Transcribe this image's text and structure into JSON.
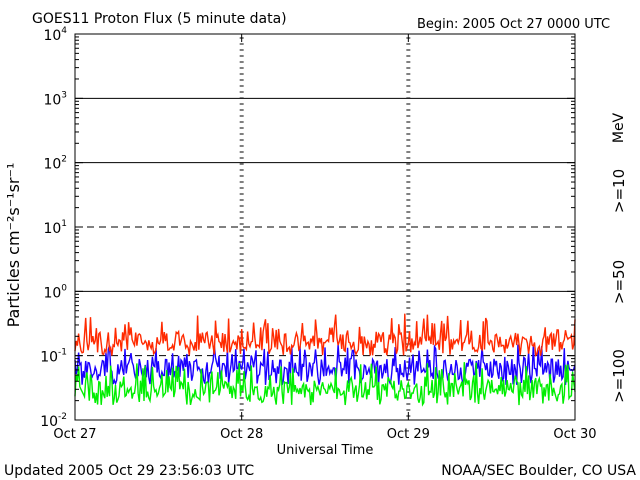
{
  "chart_data": {
    "type": "line",
    "title": "GOES11 Proton Flux (5 minute data)",
    "begin_label": "Begin: 2005 Oct 27 0000 UTC",
    "xlabel": "Universal Time",
    "ylabel": "Particles cm⁻²s⁻¹sr⁻¹",
    "y_scale": "log",
    "ylim": [
      0.01,
      10000
    ],
    "y_ticks": [
      {
        "base": "10",
        "exp": "-2"
      },
      {
        "base": "10",
        "exp": "-1"
      },
      {
        "base": "10",
        "exp": "0"
      },
      {
        "base": "10",
        "exp": "1"
      },
      {
        "base": "10",
        "exp": "2"
      },
      {
        "base": "10",
        "exp": "3"
      },
      {
        "base": "10",
        "exp": "4"
      }
    ],
    "x_ticks": [
      "Oct 27",
      "Oct 28",
      "Oct 29",
      "Oct 30"
    ],
    "x_range_days": [
      0,
      3
    ],
    "reference_lines": [
      {
        "value": 10,
        "style": "dashed"
      },
      {
        "value": 1,
        "style": "solid"
      },
      {
        "value": 100,
        "style": "solid"
      },
      {
        "value": 1000,
        "style": "solid"
      },
      {
        "value": 0.1,
        "style": "dashed"
      }
    ],
    "energy_unit": "MeV",
    "series": [
      {
        "name": ">=10",
        "color": "#ff2a00",
        "baseline": 0.17,
        "spread_low": 0.1,
        "spread_high": 0.45
      },
      {
        "name": ">=50",
        "color": "#1a00ff",
        "baseline": 0.065,
        "spread_low": 0.035,
        "spread_high": 0.15
      },
      {
        "name": ">=100",
        "color": "#00ee00",
        "baseline": 0.03,
        "spread_low": 0.017,
        "spread_high": 0.08
      }
    ],
    "grid": false
  },
  "footer": {
    "updated": "Updated 2005 Oct 29 23:56:03 UTC",
    "source": "NOAA/SEC Boulder, CO USA"
  }
}
